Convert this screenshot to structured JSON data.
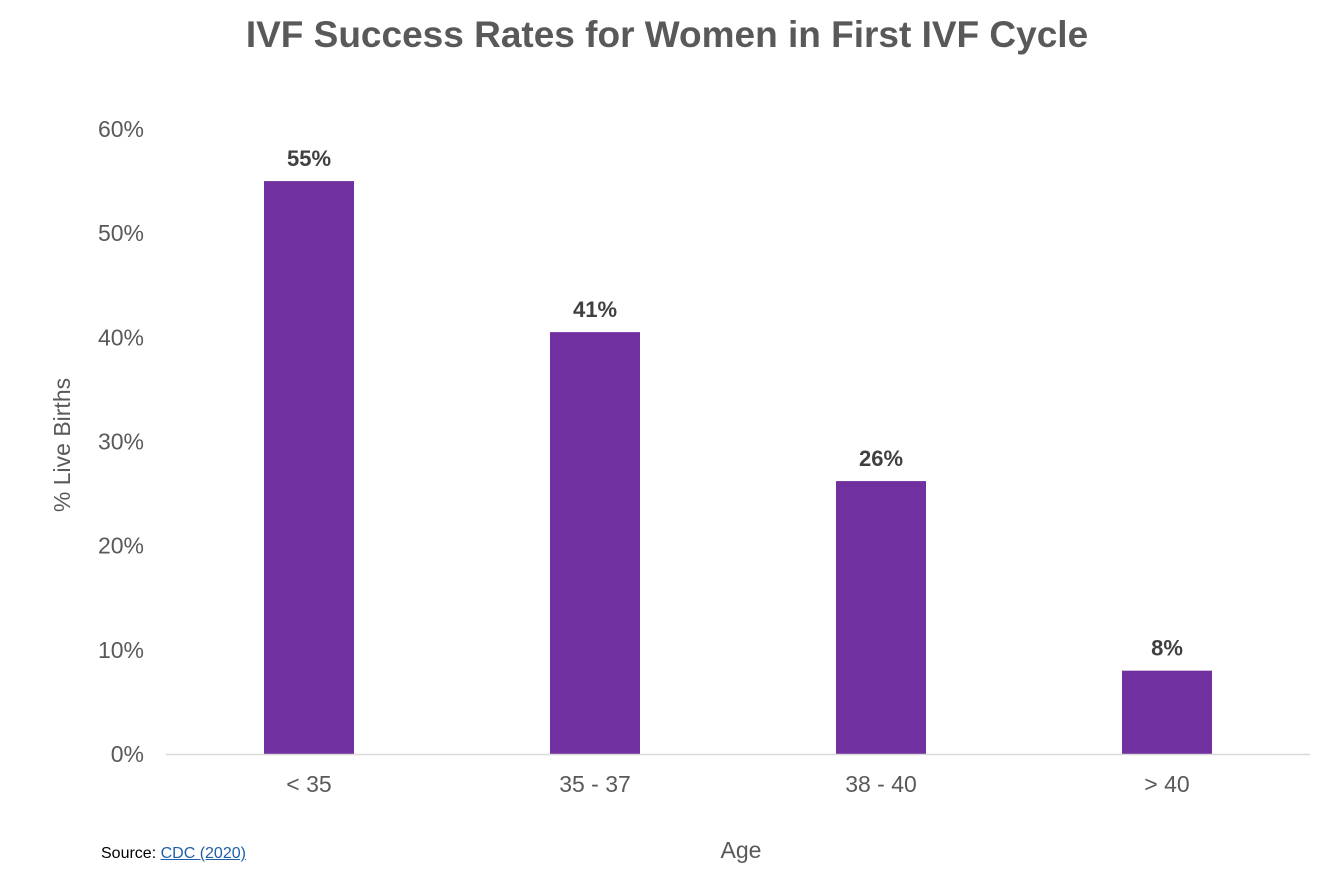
{
  "chart_data": {
    "type": "bar",
    "title": "IVF Success Rates for Women in First IVF Cycle",
    "xlabel": "Age",
    "ylabel": "% Live Births",
    "categories": [
      "< 35",
      "35 - 37",
      "38 - 40",
      "> 40"
    ],
    "values": [
      55,
      40.5,
      26.2,
      8
    ],
    "data_labels": [
      "55%",
      "41%",
      "26%",
      "8%"
    ],
    "ylim": [
      0,
      60
    ],
    "yticks": [
      0,
      10,
      20,
      30,
      40,
      50,
      60
    ],
    "ytick_labels": [
      "0%",
      "10%",
      "20%",
      "30%",
      "40%",
      "50%",
      "60%"
    ],
    "bar_color": "#7030a0",
    "grid": false,
    "legend": "none"
  },
  "source": {
    "prefix": "Source: ",
    "link_text": "CDC (2020)"
  }
}
